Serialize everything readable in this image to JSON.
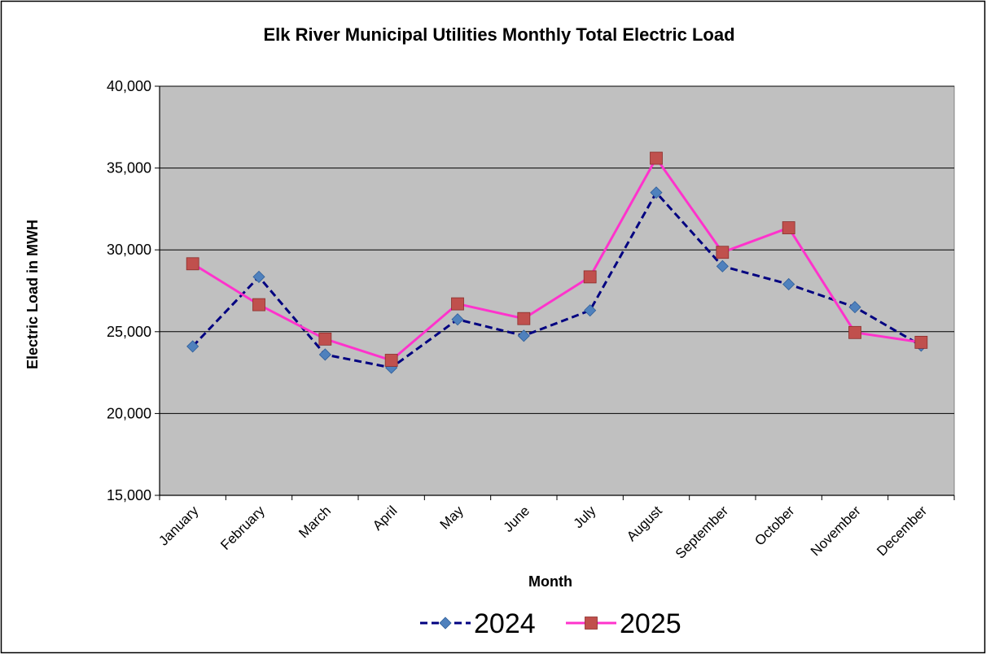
{
  "chart_data": {
    "type": "line",
    "title": "Elk River Municipal Utilities Monthly Total Electric Load",
    "xlabel": "Month",
    "ylabel": "Electric Load in MWH",
    "categories": [
      "January",
      "February",
      "March",
      "April",
      "May",
      "June",
      "July",
      "August",
      "September",
      "October",
      "November",
      "December"
    ],
    "ylim": [
      15000,
      40000
    ],
    "yticks": [
      15000,
      20000,
      25000,
      30000,
      35000,
      40000
    ],
    "ytick_labels": [
      "15,000",
      "20,000",
      "25,000",
      "30,000",
      "35,000",
      "40,000"
    ],
    "grid": "horizontal",
    "plot_background": "#C0C0C0",
    "legend_position": "bottom",
    "series": [
      {
        "name": "2024",
        "color": "#000080",
        "marker_color": "#4F81BD",
        "line_style": "dashed",
        "marker": "diamond",
        "values": [
          24100,
          28350,
          23600,
          22800,
          25750,
          24750,
          26300,
          33500,
          29000,
          27900,
          26500,
          24150
        ]
      },
      {
        "name": "2025",
        "color": "#FF33CC",
        "marker_color": "#C0504D",
        "line_style": "solid",
        "marker": "square",
        "values": [
          29150,
          26650,
          24550,
          23250,
          26700,
          25800,
          28350,
          35600,
          29850,
          31350,
          24950,
          24350
        ]
      }
    ]
  }
}
